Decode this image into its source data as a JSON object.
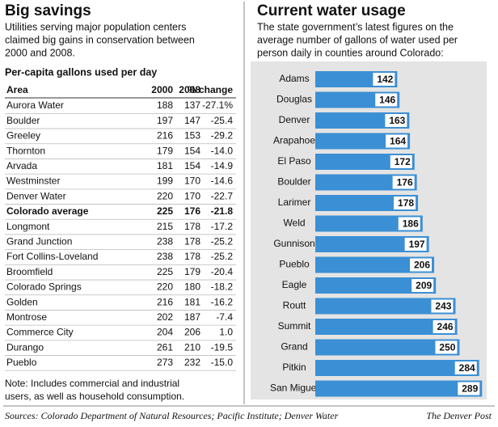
{
  "left": {
    "title": "Big savings",
    "subtitle": [
      "Utilities serving major population centers",
      "claimed big gains in conservation between",
      "2000 and 2008."
    ],
    "table_title": "Per-capita gallons used per day",
    "table": {
      "header": [
        "Area",
        "2000",
        "2008",
        "% change"
      ],
      "rows": [
        {
          "cells": [
            "Aurora Water",
            "188",
            "137",
            "-27.1%"
          ]
        },
        {
          "cells": [
            "Boulder",
            "197",
            "147",
            "-25.4"
          ]
        },
        {
          "cells": [
            "Greeley",
            "216",
            "153",
            "-29.2"
          ]
        },
        {
          "cells": [
            "Thornton",
            "179",
            "154",
            "-14.0"
          ]
        },
        {
          "cells": [
            "Arvada",
            "181",
            "154",
            "-14.9"
          ]
        },
        {
          "cells": [
            "Westminster",
            "199",
            "170",
            "-14.6"
          ]
        },
        {
          "cells": [
            "Denver Water",
            "220",
            "170",
            "-22.7"
          ]
        },
        {
          "cells": [
            "Colorado average",
            "225",
            "176",
            "-21.8"
          ],
          "bold": true
        },
        {
          "cells": [
            "Longmont",
            "215",
            "178",
            "-17.2"
          ]
        },
        {
          "cells": [
            "Grand Junction",
            "238",
            "178",
            "-25.2"
          ]
        },
        {
          "cells": [
            "Fort Collins-Loveland",
            "238",
            "178",
            "-25.2"
          ]
        },
        {
          "cells": [
            "Broomfield",
            "225",
            "179",
            "-20.4"
          ]
        },
        {
          "cells": [
            "Colorado Springs",
            "220",
            "180",
            "-18.2"
          ]
        },
        {
          "cells": [
            "Golden",
            "216",
            "181",
            "-16.2"
          ]
        },
        {
          "cells": [
            "Montrose",
            "202",
            "187",
            "-7.4"
          ]
        },
        {
          "cells": [
            "Commerce City",
            "204",
            "206",
            "1.0"
          ]
        },
        {
          "cells": [
            "Durango",
            "261",
            "210",
            "-19.5"
          ]
        },
        {
          "cells": [
            "Pueblo",
            "273",
            "232",
            "-15.0"
          ]
        }
      ]
    },
    "note": [
      "Note: Includes commercial and industrial",
      "users, as well as household consumption."
    ]
  },
  "chart_data": {
    "type": "bar",
    "orientation": "horizontal",
    "title": "Current water usage",
    "subtitle": [
      "The state government’s latest figures on the",
      "average number of gallons of water used per",
      "person daily in counties around Colorado:"
    ],
    "categories": [
      "Adams",
      "Douglas",
      "Denver",
      "Arapahoe",
      "El Paso",
      "Boulder",
      "Larimer",
      "Weld",
      "Gunnison",
      "Pueblo",
      "Eagle",
      "Routt",
      "Summit",
      "Grand",
      "Pitkin",
      "San Miguel"
    ],
    "values": [
      142,
      146,
      163,
      164,
      172,
      176,
      178,
      186,
      197,
      206,
      209,
      243,
      246,
      250,
      284,
      289
    ],
    "color": "#3b8fd4",
    "xlim": [
      0,
      290
    ]
  },
  "footer": {
    "sources": "Sources: Colorado Department of Natural Resources; Pacific Institute; Denver Water",
    "credit": "The Denver Post"
  }
}
